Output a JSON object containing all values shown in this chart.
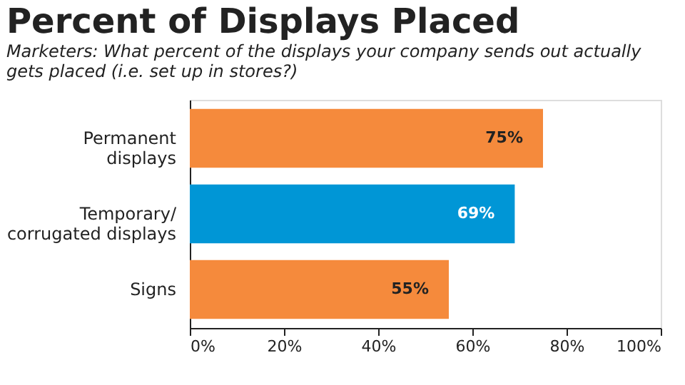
{
  "chart_data": {
    "type": "bar",
    "orientation": "horizontal",
    "title": "Percent of Displays Placed",
    "subtitle": "Marketers: What percent of the displays your company sends out actually\ngets placed (i.e. set up in stores?)",
    "categories": [
      "Permanent\ndisplays",
      "Temporary/\ncorrugated displays",
      "Signs"
    ],
    "values": [
      75,
      69,
      55
    ],
    "colors": [
      "#f58a3c",
      "#0096d6",
      "#f58a3c"
    ],
    "value_labels": [
      "75%",
      "69%",
      "55%"
    ],
    "xlim": [
      0,
      100
    ],
    "xticks": [
      {
        "value": 0,
        "label": "0%"
      },
      {
        "value": 20,
        "label": "20%"
      },
      {
        "value": 40,
        "label": "40%"
      },
      {
        "value": 60,
        "label": "60%"
      },
      {
        "value": 80,
        "label": "80%"
      },
      {
        "value": 100,
        "label": "100%"
      }
    ],
    "grid": false
  }
}
